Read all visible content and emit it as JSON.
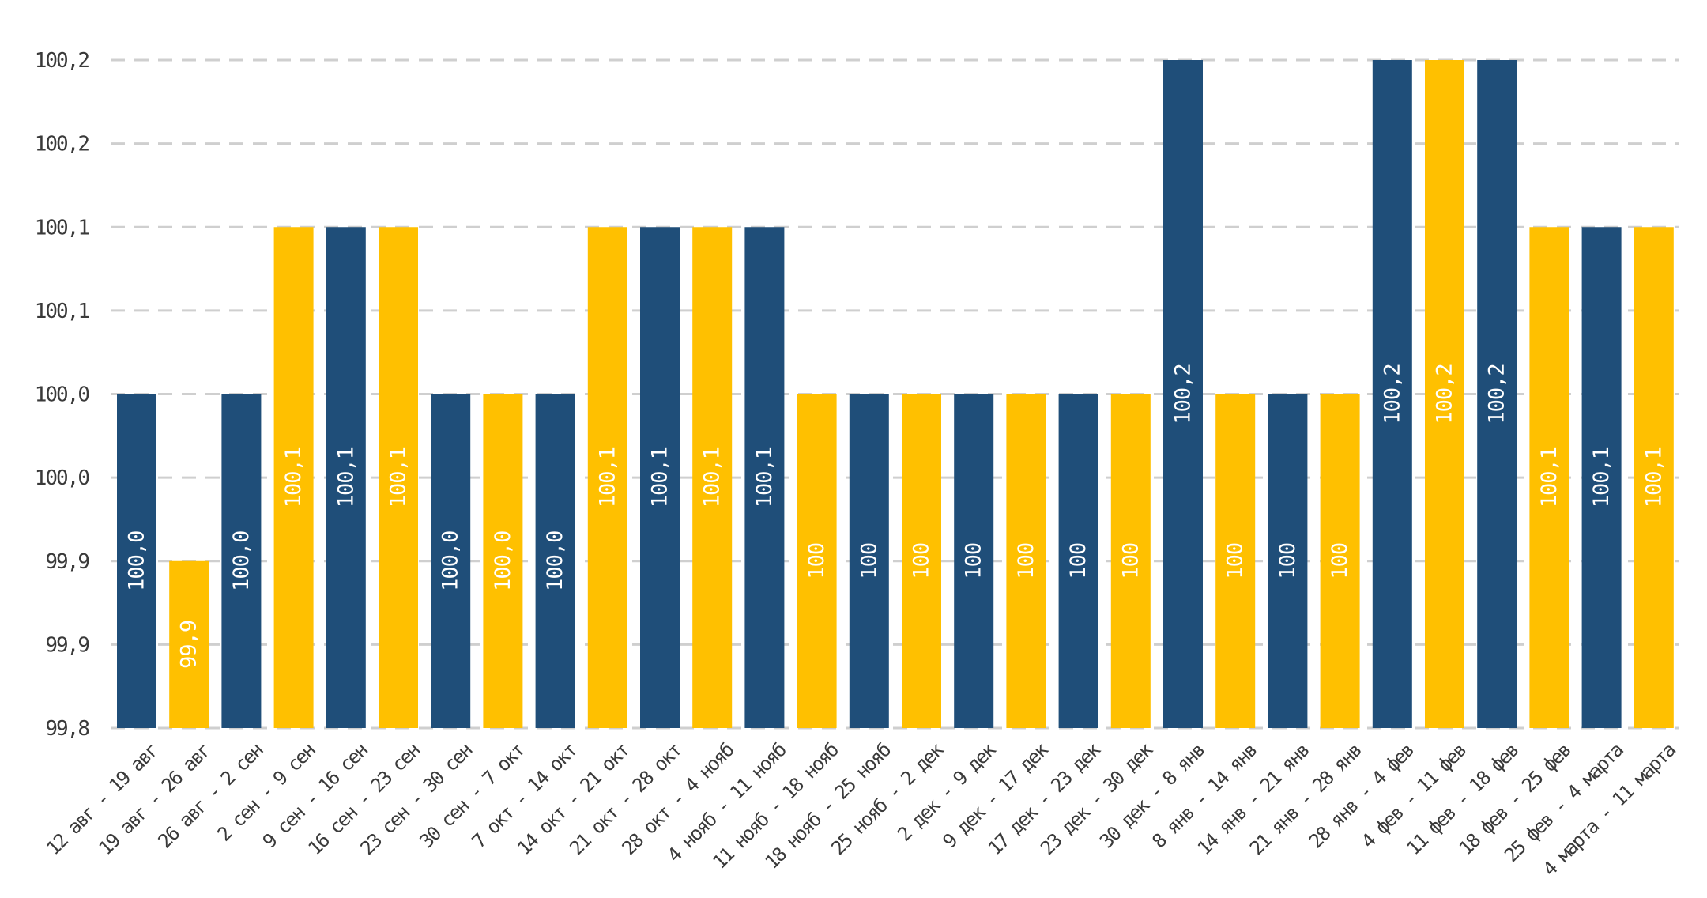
{
  "chart_data": {
    "type": "bar",
    "title": "",
    "xlabel": "",
    "ylabel": "",
    "ylim": [
      99.8,
      100.2
    ],
    "grid": true,
    "legend": "none",
    "y_tick_labels": [
      "100,2",
      "100,2",
      "100,1",
      "100,1",
      "100,0",
      "100,0",
      "99,9",
      "99,9",
      "99,8"
    ],
    "colors": {
      "navy": "#1f4e79",
      "gold": "#ffc000"
    },
    "categories": [
      "12 авг - 19 авг",
      "19 авг - 26 авг",
      "26 авг - 2 сен",
      "2 сен - 9 сен",
      "9 сен - 16 сен",
      "16 сен - 23 сен",
      "23 сен - 30 сен",
      "30 сен - 7 окт",
      "7 окт - 14 окт",
      "14 окт - 21 окт",
      "21 окт - 28 окт",
      "28 окт - 4 нояб",
      "4 нояб - 11 нояб",
      "11 нояб - 18 нояб",
      "18 нояб - 25 нояб",
      "25 нояб - 2 дек",
      "2 дек - 9 дек",
      "9 дек - 17 дек",
      "17 дек - 23 дек",
      "23 дек - 30 дек",
      "30 дек - 8 янв",
      "8 янв - 14 янв",
      "14 янв - 21 янв",
      "21 янв - 28 янв",
      "28 янв - 4 фев",
      "4 фев - 11 фев",
      "11 фев - 18 фев",
      "18 фев - 25 фев",
      "25 фев - 4 марта",
      "4 марта - 11 марта"
    ],
    "values": [
      100.0,
      99.9,
      100.0,
      100.1,
      100.1,
      100.1,
      100.0,
      100.0,
      100.0,
      100.1,
      100.1,
      100.1,
      100.1,
      100.0,
      100.0,
      100.0,
      100.0,
      100.0,
      100.0,
      100.0,
      100.2,
      100.0,
      100.0,
      100.0,
      100.2,
      100.2,
      100.2,
      100.1,
      100.1,
      100.1
    ],
    "data_labels": [
      "100,0",
      "99,9",
      "100,0",
      "100,1",
      "100,1",
      "100,1",
      "100,0",
      "100,0",
      "100,0",
      "100,1",
      "100,1",
      "100,1",
      "100,1",
      "100",
      "100",
      "100",
      "100",
      "100",
      "100",
      "100",
      "100,2",
      "100",
      "100",
      "100",
      "100,2",
      "100,2",
      "100,2",
      "100,1",
      "100,1",
      "100,1"
    ],
    "bar_colors": [
      "navy",
      "gold",
      "navy",
      "gold",
      "navy",
      "gold",
      "navy",
      "gold",
      "navy",
      "gold",
      "navy",
      "gold",
      "navy",
      "gold",
      "navy",
      "gold",
      "navy",
      "gold",
      "navy",
      "gold",
      "navy",
      "gold",
      "navy",
      "gold",
      "navy",
      "gold",
      "navy",
      "gold",
      "navy",
      "gold"
    ]
  }
}
